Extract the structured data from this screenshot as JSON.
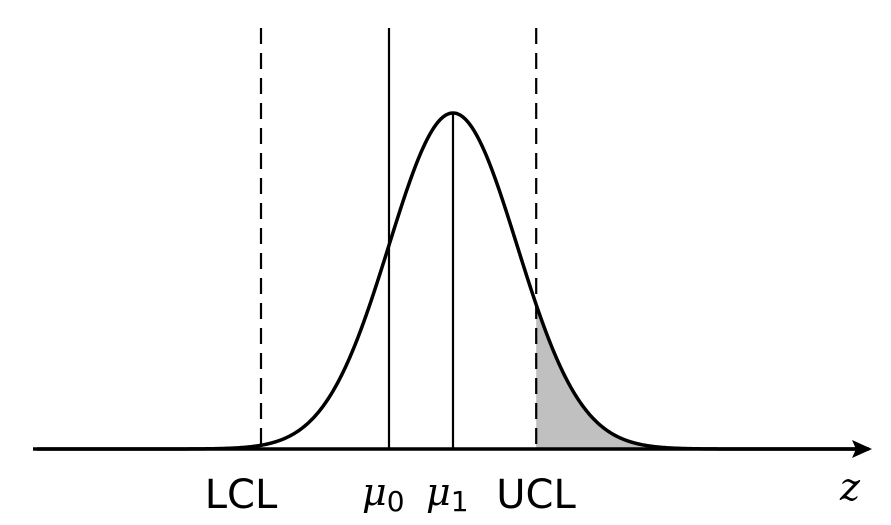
{
  "labels": {
    "lcl": "LCL",
    "mu0": "μ",
    "mu0_sub": "0",
    "mu1": "μ",
    "mu1_sub": "1",
    "ucl": "UCL",
    "axis": "z"
  },
  "distribution": {
    "mean": 1,
    "sd": 1
  },
  "markers": {
    "lcl": -2.0,
    "mu0": 0,
    "mu1": 1,
    "ucl": 2.3
  },
  "colors": {
    "curve": "#000000",
    "shade": "#c0c0c0",
    "axis": "#000000"
  }
}
